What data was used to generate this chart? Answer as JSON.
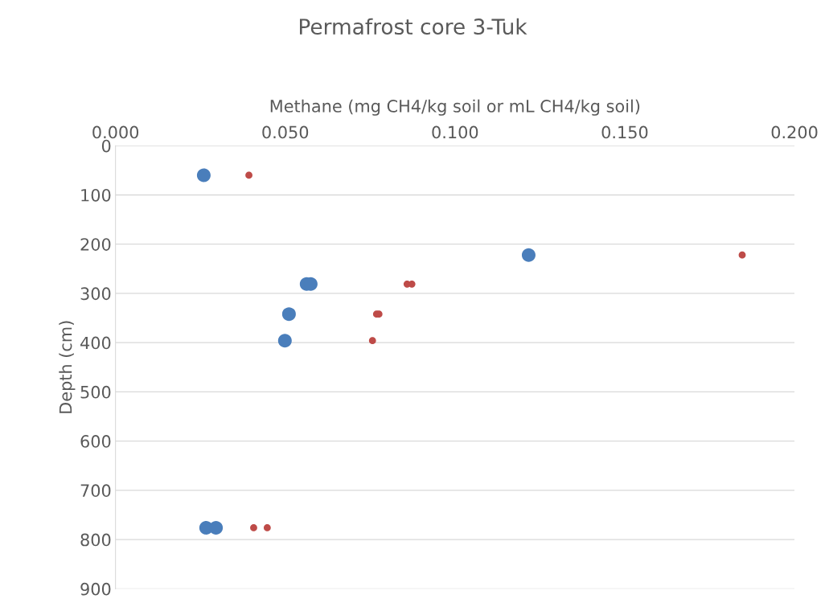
{
  "chart_data": {
    "type": "scatter",
    "title": "Permafrost core 3-Tuk",
    "xlabel": "Methane (mg CH4/kg soil or mL CH4/kg soil)",
    "ylabel": "Depth (cm)",
    "series": [
      {
        "color": "#4a7ebb",
        "x": [
          0.026,
          0.1217,
          0.0563,
          0.0575,
          0.0511,
          0.0499,
          0.0267,
          0.0296
        ],
        "values": [
          60,
          222,
          281,
          281,
          342,
          396,
          776,
          776
        ]
      },
      {
        "color": "#be4b48",
        "x": [
          0.0393,
          0.1846,
          0.0859,
          0.0873,
          0.0769,
          0.0776,
          0.0757,
          0.0407,
          0.0447
        ],
        "values": [
          60,
          222,
          281,
          281,
          342,
          342,
          396,
          776,
          776
        ]
      }
    ],
    "xlim": [
      0,
      0.2
    ],
    "xticks": [
      {
        "value": 0,
        "label": "0.000"
      },
      {
        "value": 0.05,
        "label": "0.050"
      },
      {
        "value": 0.1,
        "label": "0.100"
      },
      {
        "value": 0.15,
        "label": "0.150"
      },
      {
        "value": 0.2,
        "label": "0.200"
      }
    ],
    "ylim": [
      900,
      0
    ],
    "yticks": [
      0,
      100,
      200,
      300,
      400,
      500,
      600,
      700,
      800,
      900
    ],
    "grid": "y",
    "marker": "circle"
  }
}
